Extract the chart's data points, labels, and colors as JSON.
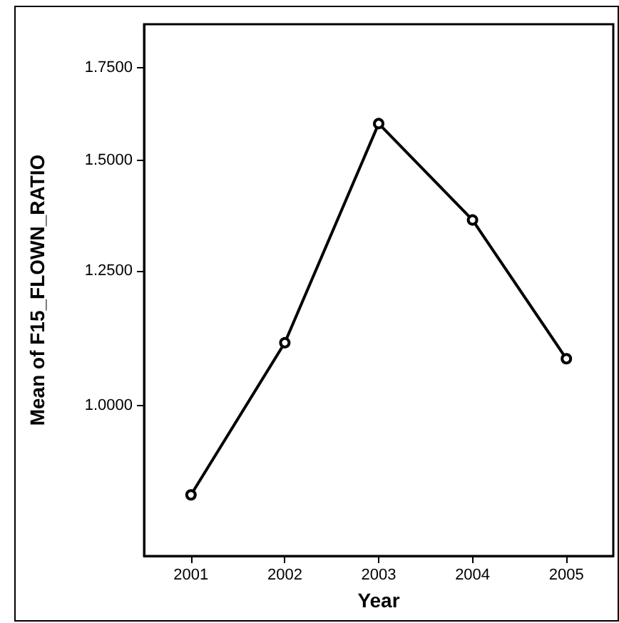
{
  "chart_data": {
    "type": "line",
    "xlabel": "Year",
    "ylabel": "Mean of F15_FLOWN_RATIO",
    "categories": [
      "2001",
      "2002",
      "2003",
      "2004",
      "2005"
    ],
    "series": [
      {
        "color": "#000000",
        "values": [
          0.863,
          1.11,
          1.595,
          1.36,
          1.081
        ]
      }
    ],
    "ylim": [
      0.78,
      1.88
    ],
    "log": "y",
    "yticks": [
      {
        "value": 1.0,
        "label": "1.0000"
      },
      {
        "value": 1.25,
        "label": "1.2500"
      },
      {
        "value": 1.5,
        "label": "1.5000"
      },
      {
        "value": 1.75,
        "label": "1.7500"
      }
    ],
    "marker": "circle",
    "line_style": "solid",
    "grid": false
  }
}
